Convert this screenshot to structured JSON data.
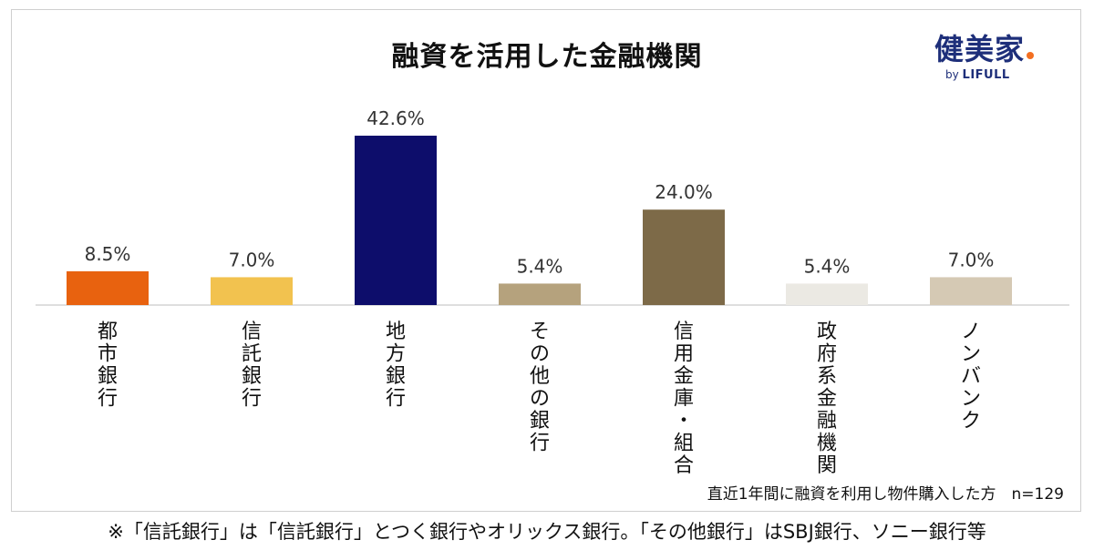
{
  "chart_data": {
    "type": "bar",
    "title": "融資を活用した金融機関",
    "categories": [
      "都市銀行",
      "信託銀行",
      "地方銀行",
      "その他の銀行",
      "信用金庫・組合",
      "政府系金融機関",
      "ノンバンク"
    ],
    "values": [
      8.5,
      7.0,
      42.6,
      5.4,
      24.0,
      5.4,
      7.0
    ],
    "value_labels": [
      "8.5%",
      "7.0%",
      "42.6%",
      "5.4%",
      "24.0%",
      "5.4%",
      "7.0%"
    ],
    "bar_colors": [
      "#e8620f",
      "#f2c24f",
      "#0d0d6b",
      "#b5a27d",
      "#7d6a48",
      "#ebe9e3",
      "#d5c9b4"
    ],
    "unit": "%",
    "ylim": [
      0,
      42.6
    ],
    "grid": false,
    "legend": "none"
  },
  "logo": {
    "main": "健美家",
    "by": "by",
    "brand": "LIFULL",
    "dot_color": "#f36f21"
  },
  "footnote": "直近1年間に融資を利用し物件購入した方　n=129",
  "note": "※「信託銀行」は「信託銀行」とつく銀行やオリックス銀行。「その他銀行」はSBJ銀行、ソニー銀行等"
}
